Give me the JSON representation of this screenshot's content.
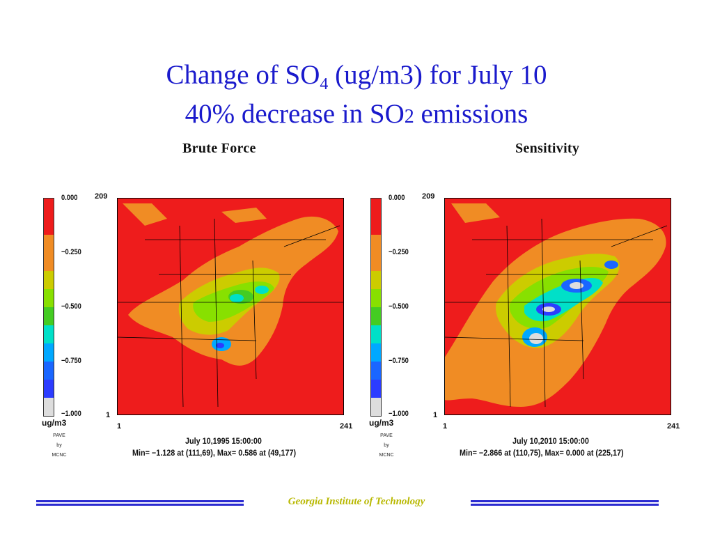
{
  "title": {
    "line1_prefix": "Change of SO",
    "line1_sub": "4",
    "line1_suffix": " (ug/m3) for July 10",
    "line2_prefix": "40% decrease in SO",
    "line2_sub": "2",
    "line2_suffix": " emissions"
  },
  "footer": "Georgia Institute of Technology",
  "chart_data": [
    {
      "type": "heatmap",
      "title": "Brute Force",
      "units": "ug/m3",
      "legend_ticks": [
        "0.000",
        "−0.250",
        "−0.500",
        "−0.750",
        "−1.000"
      ],
      "legend_colors": [
        "#ee1c1c",
        "#ee1c1c",
        "#f08c24",
        "#f08c24",
        "#cccc00",
        "#88e000",
        "#44cc22",
        "#00e0c8",
        "#00a8ff",
        "#1a66ff",
        "#2c3cff",
        "#dddddd"
      ],
      "x_range": [
        "1",
        "241"
      ],
      "y_range": [
        "1",
        "209"
      ],
      "date": "July 10,1995 15:00:00",
      "stats": "Min=  −1.128 at (111,69), Max=   0.586 at (49,177)",
      "credit": [
        "PAVE",
        "by",
        "MCNC"
      ]
    },
    {
      "type": "heatmap",
      "title": "Sensitivity",
      "units": "ug/m3",
      "legend_ticks": [
        "0.000",
        "−0.250",
        "−0.500",
        "−0.750",
        "−1.000"
      ],
      "legend_colors": [
        "#ee1c1c",
        "#ee1c1c",
        "#f08c24",
        "#f08c24",
        "#cccc00",
        "#88e000",
        "#44cc22",
        "#00e0c8",
        "#00a8ff",
        "#1a66ff",
        "#2c3cff",
        "#dddddd"
      ],
      "x_range": [
        "1",
        "241"
      ],
      "y_range": [
        "1",
        "209"
      ],
      "date": "July 10,2010 15:00:00",
      "stats": "Min=  −2.866 at (110,75), Max=   0.000 at (225,17)",
      "credit": [
        "PAVE",
        "by",
        "MCNC"
      ]
    }
  ]
}
